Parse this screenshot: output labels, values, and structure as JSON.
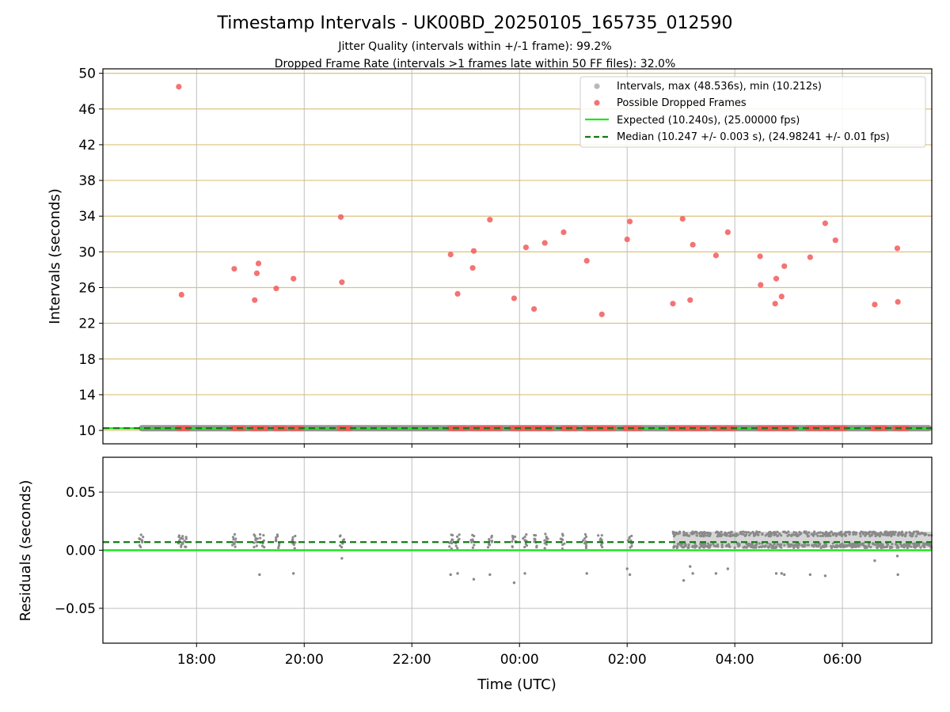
{
  "chart_data": {
    "type": "scatter",
    "title": "Timestamp Intervals - UK00BD_20250105_165735_012590",
    "subtitle_lines": [
      "Jitter Quality (intervals within +/-1 frame): 99.2%",
      "Dropped Frame Rate (intervals >1 frames late within 50 FF files): 32.0%"
    ],
    "xlabel": "Time (UTC)",
    "x_tick_labels": [
      "18:00",
      "20:00",
      "22:00",
      "00:00",
      "02:00",
      "04:00",
      "06:00"
    ],
    "x_tick_hours": [
      18,
      20,
      22,
      24,
      26,
      28,
      30
    ],
    "xlim_hours": [
      16.26,
      31.66
    ],
    "top_panel": {
      "ylabel": "Intervals (seconds)",
      "ylim": [
        8.5,
        50.5
      ],
      "y_ticks": [
        10,
        14,
        18,
        22,
        26,
        30,
        34,
        38,
        42,
        46,
        50
      ],
      "y_tick_labels": [
        "10",
        "14",
        "18",
        "22",
        "26",
        "30",
        "34",
        "38",
        "42",
        "46",
        "50"
      ],
      "grid": true,
      "legend_position": "top-right",
      "legend": [
        "Intervals, max (48.536s), min (10.212s)",
        "Possible Dropped Frames",
        "Expected (10.240s), (25.00000 fps)",
        "Median (10.247 +/- 0.003 s), (24.98241 +/- 0.01 fps)"
      ],
      "expected_value": 10.24,
      "median_value": 10.247,
      "normal_interval_range_hours": [
        16.97,
        31.66
      ],
      "dropped_frames": [
        {
          "t": 17.67,
          "v": 48.5
        },
        {
          "t": 17.72,
          "v": 25.2
        },
        {
          "t": 18.7,
          "v": 28.1
        },
        {
          "t": 19.08,
          "v": 24.6
        },
        {
          "t": 19.12,
          "v": 27.6
        },
        {
          "t": 19.15,
          "v": 28.7
        },
        {
          "t": 19.48,
          "v": 25.9
        },
        {
          "t": 19.8,
          "v": 27.0
        },
        {
          "t": 20.68,
          "v": 33.9
        },
        {
          "t": 20.7,
          "v": 26.6
        },
        {
          "t": 22.72,
          "v": 29.7
        },
        {
          "t": 22.85,
          "v": 25.3
        },
        {
          "t": 23.13,
          "v": 28.2
        },
        {
          "t": 23.15,
          "v": 30.1
        },
        {
          "t": 23.45,
          "v": 33.6
        },
        {
          "t": 23.9,
          "v": 24.8
        },
        {
          "t": 24.12,
          "v": 30.5
        },
        {
          "t": 24.27,
          "v": 23.6
        },
        {
          "t": 24.47,
          "v": 31.0
        },
        {
          "t": 24.82,
          "v": 32.2
        },
        {
          "t": 25.25,
          "v": 29.0
        },
        {
          "t": 25.53,
          "v": 23.0
        },
        {
          "t": 26.0,
          "v": 31.4
        },
        {
          "t": 26.05,
          "v": 33.4
        },
        {
          "t": 26.85,
          "v": 24.2
        },
        {
          "t": 27.03,
          "v": 33.7
        },
        {
          "t": 27.17,
          "v": 24.6
        },
        {
          "t": 27.22,
          "v": 30.8
        },
        {
          "t": 27.65,
          "v": 29.6
        },
        {
          "t": 27.87,
          "v": 32.2
        },
        {
          "t": 28.47,
          "v": 29.5
        },
        {
          "t": 28.48,
          "v": 26.3
        },
        {
          "t": 28.75,
          "v": 24.2
        },
        {
          "t": 28.77,
          "v": 27.0
        },
        {
          "t": 28.87,
          "v": 25.0
        },
        {
          "t": 28.92,
          "v": 28.4
        },
        {
          "t": 29.4,
          "v": 29.4
        },
        {
          "t": 29.68,
          "v": 33.2
        },
        {
          "t": 29.87,
          "v": 31.3
        },
        {
          "t": 30.6,
          "v": 24.1
        },
        {
          "t": 31.02,
          "v": 30.4
        },
        {
          "t": 31.03,
          "v": 24.4
        }
      ],
      "dropped_clusters_at_10s": [
        [
          17.65,
          17.85
        ],
        [
          18.67,
          18.87
        ],
        [
          19.02,
          19.3
        ],
        [
          19.45,
          19.65
        ],
        [
          19.75,
          19.95
        ],
        [
          20.65,
          20.85
        ],
        [
          22.7,
          23.0
        ],
        [
          23.1,
          23.35
        ],
        [
          23.4,
          23.65
        ],
        [
          23.85,
          24.2
        ],
        [
          24.25,
          24.6
        ],
        [
          24.8,
          25.05
        ],
        [
          25.2,
          25.45
        ],
        [
          25.5,
          25.75
        ],
        [
          25.95,
          26.25
        ],
        [
          26.8,
          27.25
        ],
        [
          27.2,
          27.5
        ],
        [
          27.6,
          28.0
        ],
        [
          28.45,
          28.7
        ],
        [
          28.75,
          29.1
        ],
        [
          29.35,
          29.6
        ],
        [
          29.65,
          30.05
        ],
        [
          30.55,
          30.8
        ],
        [
          30.97,
          31.2
        ]
      ]
    },
    "bottom_panel": {
      "ylabel": "Residuals (seconds)",
      "ylim": [
        -0.08,
        0.08
      ],
      "y_ticks": [
        -0.05,
        0.0,
        0.05
      ],
      "y_tick_labels": [
        "−0.05",
        "0.00",
        "0.05"
      ],
      "grid": true,
      "expected_residual": 0.0,
      "median_residual": 0.007,
      "sparse_clusters_hours": [
        16.97,
        17.7,
        17.78,
        18.7,
        19.1,
        19.22,
        19.5,
        19.8,
        20.7,
        22.72,
        22.85,
        23.12,
        23.45,
        23.9,
        24.1,
        24.3,
        24.5,
        24.8,
        25.2,
        25.5,
        26.05
      ],
      "outliers": [
        {
          "t": 19.17,
          "v": -0.021
        },
        {
          "t": 19.8,
          "v": -0.02
        },
        {
          "t": 20.7,
          "v": -0.007
        },
        {
          "t": 22.72,
          "v": -0.021
        },
        {
          "t": 22.85,
          "v": -0.02
        },
        {
          "t": 23.15,
          "v": -0.025
        },
        {
          "t": 23.45,
          "v": -0.021
        },
        {
          "t": 23.9,
          "v": -0.028
        },
        {
          "t": 24.1,
          "v": -0.02
        },
        {
          "t": 25.25,
          "v": -0.02
        },
        {
          "t": 26.0,
          "v": -0.016
        },
        {
          "t": 26.05,
          "v": -0.021
        },
        {
          "t": 27.05,
          "v": -0.026
        },
        {
          "t": 27.17,
          "v": -0.014
        },
        {
          "t": 27.22,
          "v": -0.02
        },
        {
          "t": 27.65,
          "v": -0.02
        },
        {
          "t": 27.87,
          "v": -0.016
        },
        {
          "t": 28.77,
          "v": -0.02
        },
        {
          "t": 28.87,
          "v": -0.02
        },
        {
          "t": 28.92,
          "v": -0.021
        },
        {
          "t": 29.4,
          "v": -0.021
        },
        {
          "t": 29.68,
          "v": -0.022
        },
        {
          "t": 30.6,
          "v": -0.009
        },
        {
          "t": 31.02,
          "v": -0.005
        },
        {
          "t": 31.03,
          "v": -0.021
        }
      ],
      "dense_band_hours": [
        26.85,
        31.66
      ],
      "dense_band_range": [
        0.002,
        0.016
      ]
    },
    "colors": {
      "intervals": "#8a8a8a",
      "dropped": "#f25b5b",
      "expected": "#1ee61e",
      "median": "#137a13",
      "hgrid_top": "#dcc27a",
      "grid": "#bfbfbf"
    }
  }
}
